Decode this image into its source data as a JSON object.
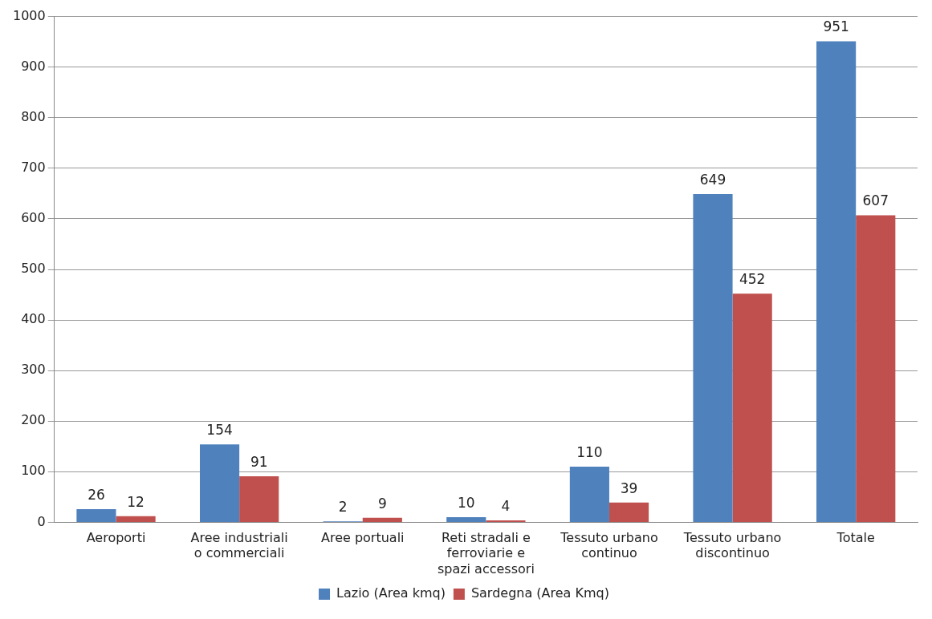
{
  "chart_data": {
    "type": "bar",
    "categories": [
      "Aeroporti",
      "Aree industriali o commerciali",
      "Aree portuali",
      "Reti stradali e ferroviarie e spazi accessori",
      "Tessuto urbano continuo",
      "Tessuto urbano discontinuo",
      "Totale"
    ],
    "series": [
      {
        "name": "Lazio (Area kmq)",
        "color": "#4f81bd",
        "values": [
          26,
          154,
          2,
          10,
          110,
          649,
          951
        ]
      },
      {
        "name": "Sardegna (Area Kmq)",
        "color": "#c0504d",
        "values": [
          12,
          91,
          9,
          4,
          39,
          452,
          607
        ]
      }
    ],
    "ylim": [
      0,
      1000
    ],
    "yticks": [
      0,
      100,
      200,
      300,
      400,
      500,
      600,
      700,
      800,
      900,
      1000
    ],
    "grid": "y",
    "legend": "bottom",
    "data_labels": true
  }
}
